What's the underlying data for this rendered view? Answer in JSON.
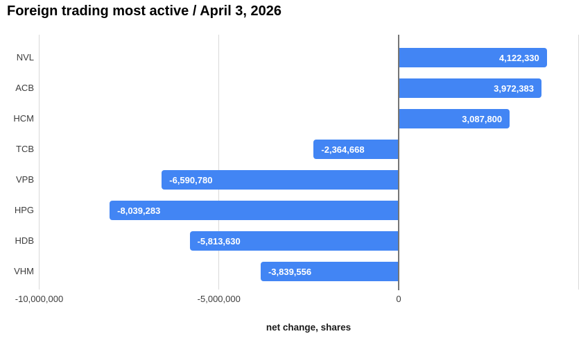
{
  "chart_data": {
    "type": "bar",
    "orientation": "horizontal",
    "title": "Foreign trading most active / April 3, 2026",
    "xlabel": "net change, shares",
    "categories": [
      "NVL",
      "ACB",
      "HCM",
      "TCB",
      "VPB",
      "HPG",
      "HDB",
      "VHM"
    ],
    "values": [
      4122330,
      3972383,
      3087800,
      -2364668,
      -6590780,
      -8039283,
      -5813630,
      -3839556
    ],
    "value_labels": [
      "4,122,330",
      "3,972,383",
      "3,087,800",
      "-2,364,668",
      "-6,590,780",
      "-8,039,283",
      "-5,813,630",
      "-3,839,556"
    ],
    "xlim": [
      -10000000,
      5000000
    ],
    "xticks": [
      {
        "value": -10000000,
        "label": "-10,000,000"
      },
      {
        "value": -5000000,
        "label": "-5,000,000"
      },
      {
        "value": 0,
        "label": "0"
      }
    ],
    "grid": true,
    "legend": "none",
    "colors": {
      "bar": "#4285f4",
      "bar_label": "#ffffff",
      "gridline": "#d9d9d9",
      "zero_line": "#757575",
      "axis_label": "#3c3c3c",
      "title": "#000000"
    }
  }
}
